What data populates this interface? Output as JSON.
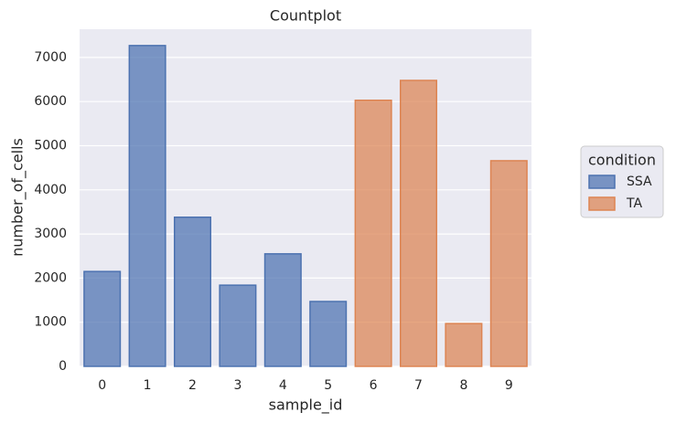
{
  "chart_data": {
    "type": "bar",
    "title": "Countplot",
    "x_label": "sample_id",
    "y_label": "number_of_cells",
    "categories": [
      "0",
      "1",
      "2",
      "3",
      "4",
      "5",
      "6",
      "7",
      "8",
      "9"
    ],
    "series": [
      {
        "name": "SSA",
        "color": "#4c72b0",
        "values": [
          2150,
          7270,
          3380,
          1840,
          2550,
          1470,
          null,
          null,
          null,
          null
        ]
      },
      {
        "name": "TA",
        "color": "#dd8452",
        "values": [
          null,
          null,
          null,
          null,
          null,
          null,
          6030,
          6480,
          970,
          4660
        ]
      }
    ],
    "ylim": [
      0,
      7640
    ],
    "yticks": [
      0,
      1000,
      2000,
      3000,
      4000,
      5000,
      6000,
      7000
    ],
    "grid": true,
    "legend_title": "condition",
    "legend": "right"
  }
}
